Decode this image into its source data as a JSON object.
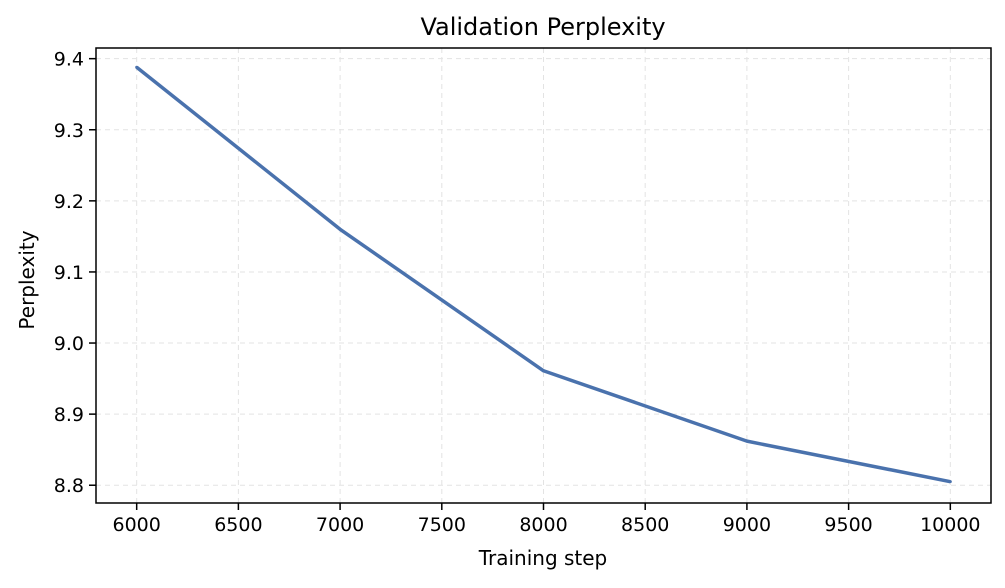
{
  "chart_data": {
    "type": "line",
    "title": "Validation Perplexity",
    "xlabel": "Training step",
    "ylabel": "Perplexity",
    "xlim": [
      5800,
      10200
    ],
    "ylim": [
      8.775,
      9.415
    ],
    "xticks": [
      6000,
      6500,
      7000,
      7500,
      8000,
      8500,
      9000,
      9500,
      10000
    ],
    "yticks": [
      8.8,
      8.9,
      9.0,
      9.1,
      9.2,
      9.3,
      9.4
    ],
    "xtick_labels": [
      "6000",
      "6500",
      "7000",
      "7500",
      "8000",
      "8500",
      "9000",
      "9500",
      "10000"
    ],
    "ytick_labels": [
      "8.8",
      "8.9",
      "9.0",
      "9.1",
      "9.2",
      "9.3",
      "9.4"
    ],
    "grid": true,
    "legend": "none",
    "series": [
      {
        "x": [
          6000,
          7000,
          8000,
          9000,
          10000
        ],
        "y": [
          9.388,
          9.16,
          8.961,
          8.862,
          8.805
        ],
        "color": "#4a72ad"
      }
    ]
  }
}
